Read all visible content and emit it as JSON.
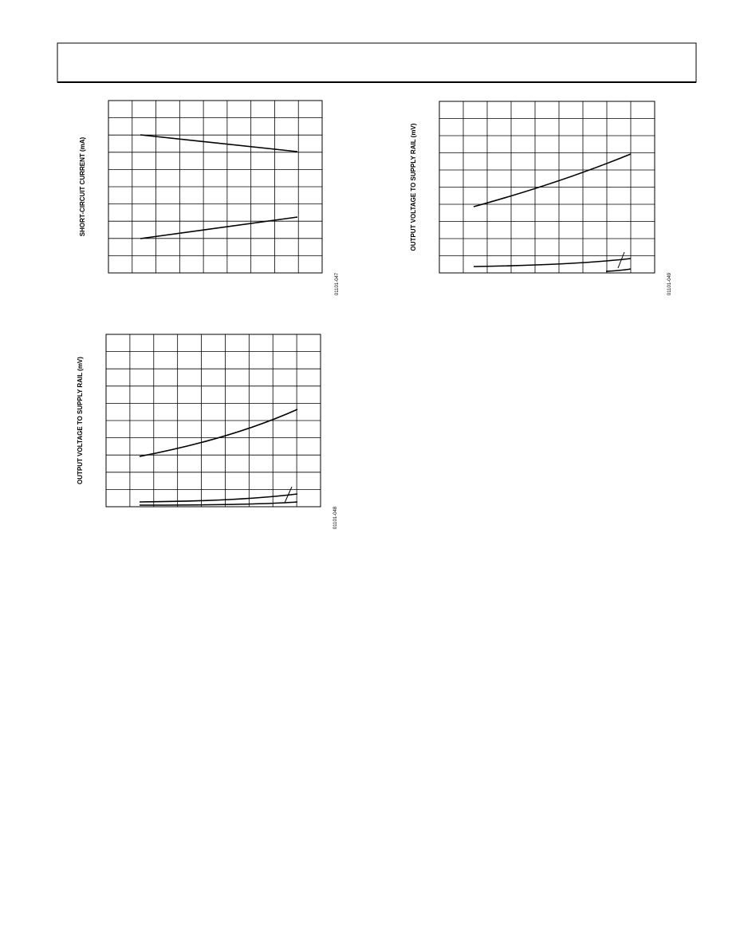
{
  "figures": [
    {
      "y_label": "SHORT-CIRCUIT CURRENT (mA)",
      "code": "01101-047"
    },
    {
      "y_label": "OUTPUT VOLTAGE TO SUPPLY RAIL (mV)",
      "code": "01101-049"
    },
    {
      "y_label": "OUTPUT VOLTAGE TO SUPPLY RAIL (mV)",
      "code": "01101-048"
    }
  ]
}
